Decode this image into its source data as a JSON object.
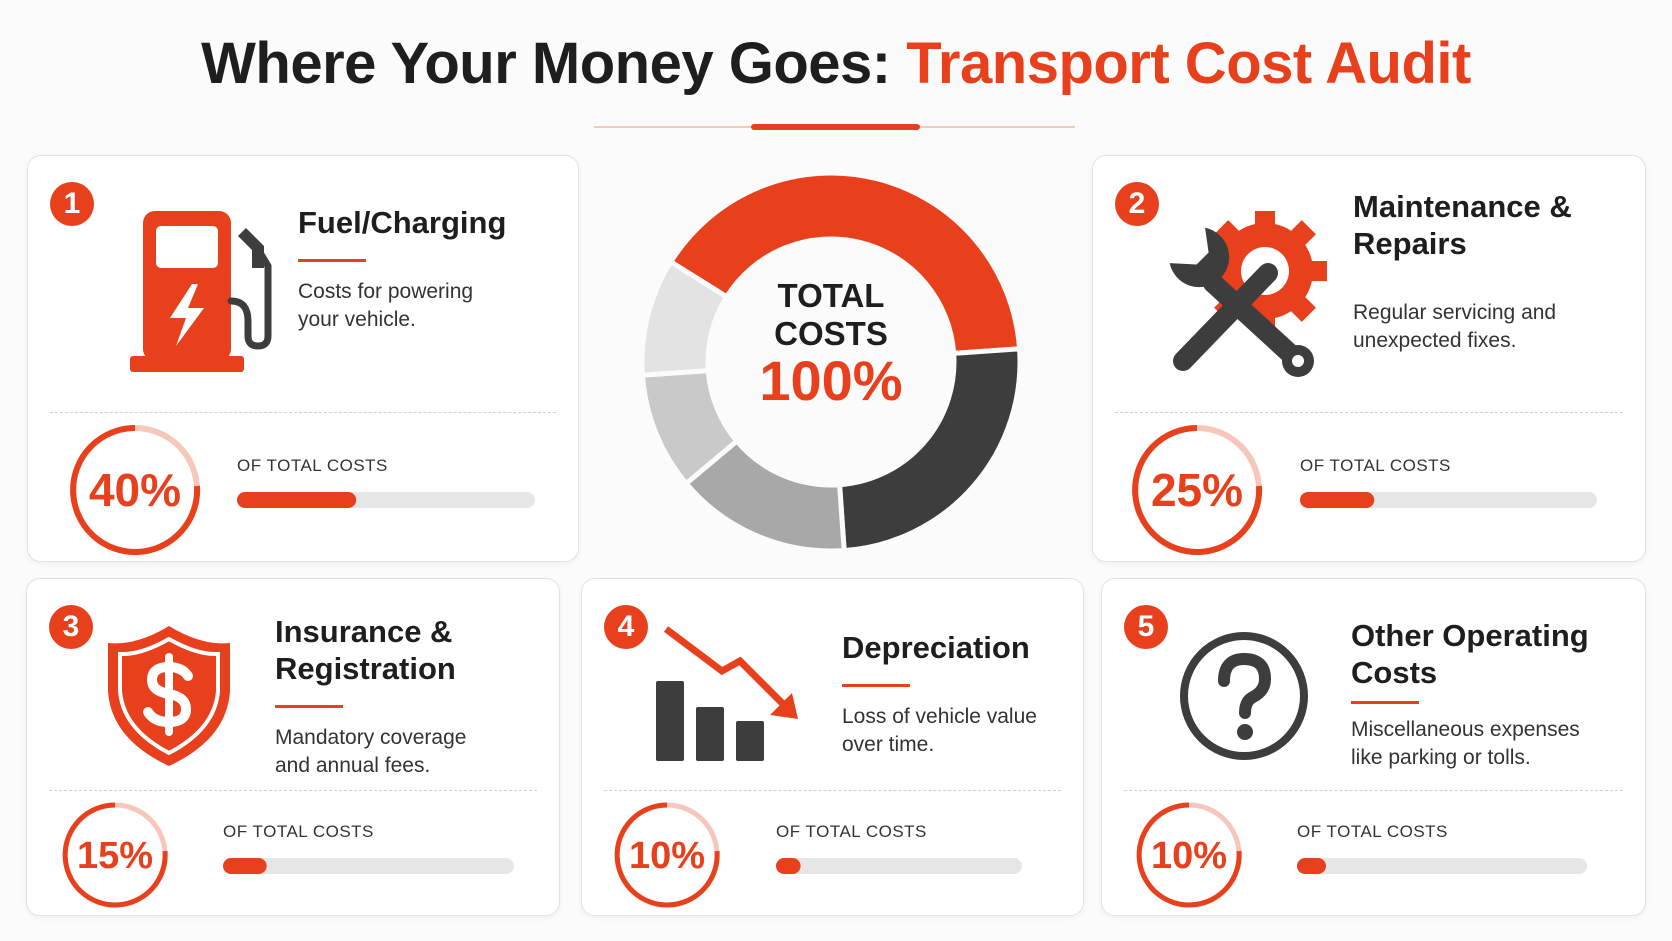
{
  "title": {
    "lead": "Where Your Money Goes:",
    "accent": "Transport Cost Audit"
  },
  "center": {
    "line1": "TOTAL",
    "line2": "COSTS",
    "total": 100,
    "total_label": "100%"
  },
  "items": [
    {
      "number": "1",
      "title": "Fuel/Charging",
      "description": "Costs for powering your vehicle.",
      "percent": 40,
      "percent_label": "40%",
      "caption": "OF TOTAL COSTS",
      "color": "#e8401c"
    },
    {
      "number": "2",
      "title": "Maintenance & Repairs",
      "description": "Regular servicing and unexpected fixes.",
      "percent": 25,
      "percent_label": "25%",
      "caption": "OF TOTAL COSTS",
      "color": "#3d3d3d"
    },
    {
      "number": "3",
      "title": "Insurance & Registration",
      "description": "Mandatory coverage and annual fees.",
      "percent": 15,
      "percent_label": "15%",
      "caption": "OF TOTAL COSTS",
      "color": "#a8a8a8"
    },
    {
      "number": "4",
      "title": "Depreciation",
      "description": "Loss of vehicle value over time.",
      "percent": 10,
      "percent_label": "10%",
      "caption": "OF TOTAL COSTS",
      "color": "#c9c9c9"
    },
    {
      "number": "5",
      "title": "Other Operating Costs",
      "description": "Miscellaneous expenses like parking or tolls.",
      "percent": 10,
      "percent_label": "10%",
      "caption": "OF TOTAL COSTS",
      "color": "#e3e3e3"
    }
  ]
}
